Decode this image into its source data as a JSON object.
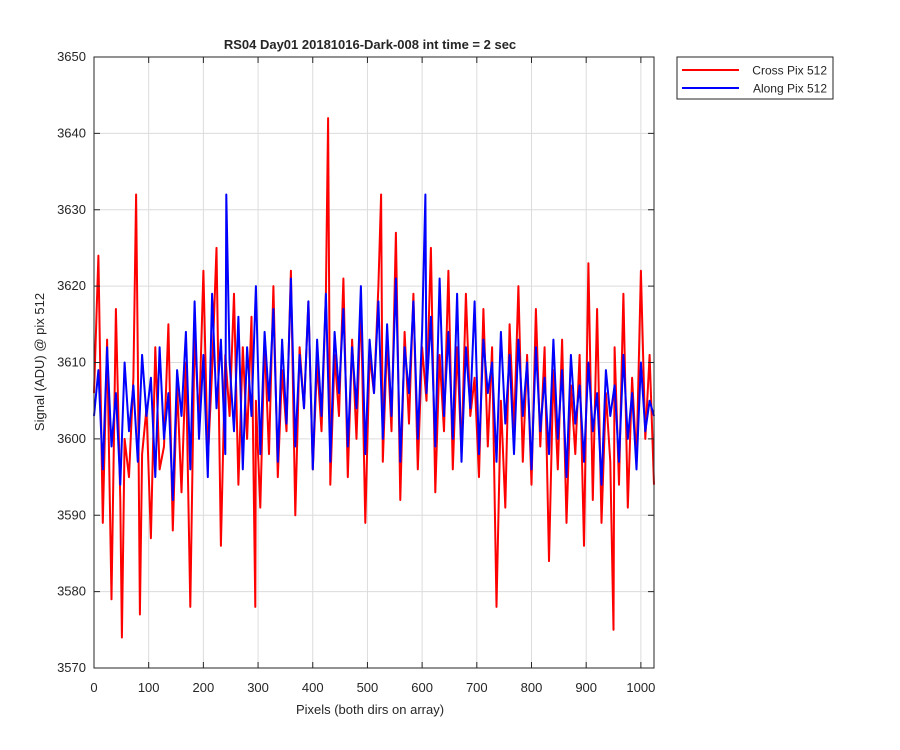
{
  "chart_data": {
    "type": "line",
    "title": "RS04 Day01 20181016-Dark-008 int time = 2 sec",
    "xlabel": "Pixels (both dirs on array)",
    "ylabel": "Signal (ADU) @ pix 512",
    "xlim": [
      0,
      1024
    ],
    "ylim": [
      3570,
      3650
    ],
    "xticks": [
      0,
      100,
      200,
      300,
      400,
      500,
      600,
      700,
      800,
      900,
      1000
    ],
    "yticks": [
      3570,
      3580,
      3590,
      3600,
      3610,
      3620,
      3630,
      3640,
      3650
    ],
    "grid": true,
    "legend_position": "outside-top-right",
    "series": [
      {
        "name": "Cross Pix 512",
        "color": "#ff0000",
        "x": [
          0,
          8,
          16,
          24,
          32,
          40,
          48,
          51,
          56,
          64,
          72,
          77,
          80,
          84,
          88,
          96,
          104,
          112,
          120,
          128,
          136,
          144,
          152,
          160,
          168,
          176,
          184,
          192,
          200,
          208,
          216,
          224,
          232,
          240,
          248,
          256,
          264,
          272,
          280,
          288,
          295,
          296,
          304,
          312,
          320,
          328,
          336,
          344,
          352,
          360,
          368,
          376,
          384,
          392,
          400,
          408,
          416,
          424,
          428,
          432,
          440,
          448,
          456,
          464,
          472,
          480,
          488,
          496,
          504,
          512,
          520,
          525,
          528,
          536,
          544,
          552,
          560,
          568,
          576,
          584,
          592,
          600,
          608,
          616,
          624,
          632,
          640,
          648,
          656,
          664,
          672,
          680,
          688,
          696,
          704,
          712,
          720,
          728,
          736,
          744,
          752,
          760,
          768,
          776,
          784,
          792,
          800,
          808,
          816,
          824,
          832,
          840,
          848,
          856,
          864,
          872,
          880,
          888,
          896,
          904,
          912,
          920,
          928,
          936,
          944,
          950,
          952,
          960,
          968,
          976,
          984,
          992,
          1000,
          1008,
          1016,
          1024
        ],
        "values": [
          3606,
          3624,
          3589,
          3613,
          3579,
          3617,
          3592,
          3574,
          3600,
          3595,
          3608,
          3632,
          3611,
          3577,
          3598,
          3604,
          3587,
          3612,
          3596,
          3599,
          3615,
          3588,
          3607,
          3593,
          3610,
          3578,
          3614,
          3602,
          3622,
          3597,
          3609,
          3625,
          3586,
          3611,
          3603,
          3619,
          3594,
          3612,
          3600,
          3616,
          3578,
          3605,
          3591,
          3613,
          3598,
          3620,
          3595,
          3609,
          3601,
          3622,
          3590,
          3612,
          3604,
          3618,
          3596,
          3610,
          3601,
          3619,
          3642,
          3594,
          3611,
          3603,
          3621,
          3595,
          3613,
          3600,
          3618,
          3589,
          3611,
          3606,
          3620,
          3632,
          3597,
          3613,
          3601,
          3627,
          3592,
          3614,
          3602,
          3619,
          3596,
          3612,
          3605,
          3625,
          3593,
          3611,
          3601,
          3622,
          3596,
          3612,
          3598,
          3619,
          3603,
          3608,
          3595,
          3617,
          3599,
          3612,
          3578,
          3605,
          3591,
          3615,
          3601,
          3620,
          3597,
          3611,
          3594,
          3617,
          3599,
          3612,
          3584,
          3609,
          3596,
          3613,
          3589,
          3607,
          3598,
          3611,
          3586,
          3623,
          3592,
          3617,
          3589,
          3606,
          3597,
          3575,
          3612,
          3594,
          3619,
          3591,
          3608,
          3597,
          3622,
          3600,
          3611,
          3594
        ]
      },
      {
        "name": "Along Pix 512",
        "color": "#0000ff",
        "x": [
          0,
          8,
          16,
          24,
          32,
          40,
          48,
          56,
          64,
          72,
          80,
          88,
          96,
          104,
          112,
          120,
          128,
          136,
          144,
          152,
          160,
          168,
          176,
          184,
          192,
          200,
          208,
          216,
          224,
          232,
          240,
          242,
          248,
          256,
          264,
          272,
          280,
          288,
          296,
          304,
          312,
          320,
          328,
          336,
          344,
          352,
          360,
          368,
          376,
          384,
          392,
          400,
          408,
          416,
          424,
          432,
          440,
          448,
          456,
          464,
          472,
          480,
          488,
          496,
          504,
          512,
          520,
          528,
          536,
          544,
          552,
          560,
          568,
          576,
          584,
          592,
          600,
          606,
          608,
          616,
          624,
          632,
          640,
          648,
          656,
          664,
          672,
          680,
          688,
          696,
          704,
          712,
          720,
          728,
          736,
          744,
          752,
          760,
          768,
          776,
          784,
          792,
          800,
          808,
          816,
          824,
          832,
          840,
          848,
          856,
          864,
          872,
          880,
          888,
          896,
          904,
          912,
          920,
          928,
          936,
          944,
          952,
          960,
          968,
          976,
          984,
          992,
          1000,
          1008,
          1016,
          1024
        ],
        "values": [
          3603,
          3609,
          3596,
          3612,
          3599,
          3606,
          3594,
          3610,
          3601,
          3607,
          3597,
          3611,
          3603,
          3608,
          3595,
          3612,
          3600,
          3606,
          3592,
          3609,
          3603,
          3614,
          3596,
          3618,
          3600,
          3611,
          3595,
          3619,
          3604,
          3613,
          3598,
          3632,
          3610,
          3601,
          3616,
          3596,
          3612,
          3603,
          3620,
          3598,
          3614,
          3605,
          3617,
          3597,
          3613,
          3602,
          3621,
          3599,
          3611,
          3604,
          3618,
          3596,
          3613,
          3603,
          3619,
          3597,
          3614,
          3606,
          3617,
          3599,
          3612,
          3604,
          3620,
          3598,
          3613,
          3606,
          3618,
          3600,
          3615,
          3603,
          3621,
          3597,
          3612,
          3606,
          3618,
          3600,
          3614,
          3632,
          3606,
          3616,
          3599,
          3621,
          3603,
          3614,
          3600,
          3619,
          3597,
          3612,
          3604,
          3618,
          3598,
          3613,
          3606,
          3610,
          3597,
          3614,
          3602,
          3611,
          3598,
          3613,
          3603,
          3610,
          3596,
          3612,
          3601,
          3608,
          3598,
          3613,
          3600,
          3609,
          3595,
          3611,
          3602,
          3607,
          3597,
          3610,
          3601,
          3606,
          3594,
          3609,
          3603,
          3607,
          3597,
          3611,
          3600,
          3606,
          3596,
          3610,
          3601,
          3605,
          3603
        ]
      }
    ]
  }
}
